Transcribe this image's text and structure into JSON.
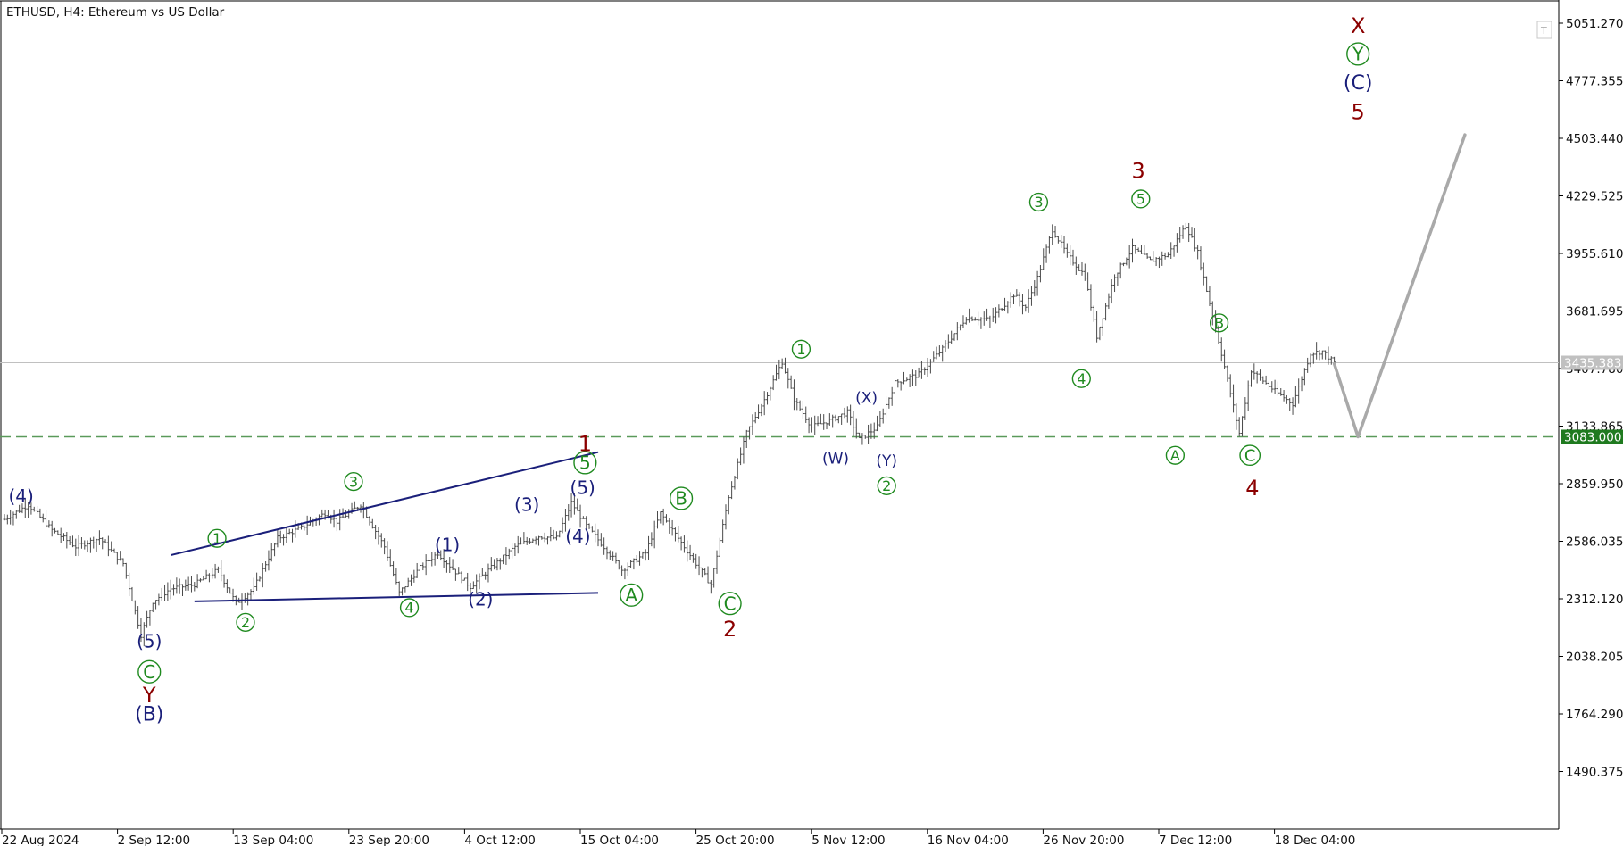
{
  "window": {
    "title": "ETHUSD, H4:  Ethereum vs US Dollar",
    "corner_button": "T"
  },
  "colors": {
    "candle": "#4a4a4a",
    "navy": "#1a1f7a",
    "green": "#1f8a1f",
    "maroon": "#8b0000",
    "forecast": "#a9a9a9",
    "support_line": "#5a9a5a",
    "current_price_line": "#c0c0c0",
    "support_tag": "#1f7a1f",
    "current_tag": "#c0c0c0"
  },
  "chart_data": {
    "type": "candlestick",
    "symbol": "ETHUSD",
    "timeframe": "H4",
    "title": "Ethereum vs US Dollar",
    "y_ticks": [
      "5051.270",
      "4777.355",
      "4503.440",
      "4229.525",
      "3955.610",
      "3681.695",
      "3407.780",
      "3133.865",
      "2859.950",
      "2586.035",
      "2312.120",
      "2038.205",
      "1764.290",
      "1490.375"
    ],
    "x_ticks": [
      "22 Aug 2024",
      "2 Sep 12:00",
      "13 Sep 04:00",
      "23 Sep 20:00",
      "4 Oct 12:00",
      "15 Oct 04:00",
      "25 Oct 20:00",
      "5 Nov 12:00",
      "16 Nov 04:00",
      "26 Nov 20:00",
      "7 Dec 12:00",
      "18 Dec 04:00"
    ],
    "ylim": [
      1250,
      5150
    ],
    "current_price": "3435.383",
    "support_level": "3083.000",
    "price_path": [
      [
        0,
        2690
      ],
      [
        2,
        2760
      ],
      [
        4,
        2640
      ],
      [
        6,
        2560
      ],
      [
        8,
        2600
      ],
      [
        10,
        2480
      ],
      [
        11.4,
        2140
      ],
      [
        12.5,
        2300
      ],
      [
        14,
        2360
      ],
      [
        16,
        2380
      ],
      [
        18,
        2450
      ],
      [
        19.5,
        2290
      ],
      [
        21,
        2360
      ],
      [
        23,
        2600
      ],
      [
        25,
        2650
      ],
      [
        27,
        2720
      ],
      [
        28,
        2680
      ],
      [
        30,
        2760
      ],
      [
        32,
        2560
      ],
      [
        33.3,
        2340
      ],
      [
        35,
        2460
      ],
      [
        36.5,
        2530
      ],
      [
        38,
        2440
      ],
      [
        39.3,
        2370
      ],
      [
        41,
        2460
      ],
      [
        43,
        2560
      ],
      [
        45,
        2610
      ],
      [
        46.5,
        2600
      ],
      [
        47.8,
        2770
      ],
      [
        49,
        2660
      ],
      [
        50.5,
        2560
      ],
      [
        52,
        2450
      ],
      [
        54,
        2530
      ],
      [
        55.3,
        2720
      ],
      [
        56.5,
        2620
      ],
      [
        58,
        2500
      ],
      [
        59.4,
        2380
      ],
      [
        61,
        2800
      ],
      [
        62.5,
        3100
      ],
      [
        64,
        3260
      ],
      [
        65.5,
        3440
      ],
      [
        66.5,
        3260
      ],
      [
        68,
        3130
      ],
      [
        69.5,
        3160
      ],
      [
        71,
        3200
      ],
      [
        72,
        3070
      ],
      [
        73.5,
        3130
      ],
      [
        75,
        3340
      ],
      [
        77,
        3380
      ],
      [
        79,
        3500
      ],
      [
        81,
        3650
      ],
      [
        83,
        3640
      ],
      [
        85,
        3760
      ],
      [
        86,
        3700
      ],
      [
        87,
        3840
      ],
      [
        88.2,
        4070
      ],
      [
        89.5,
        3950
      ],
      [
        91,
        3850
      ],
      [
        92,
        3560
      ],
      [
        93.5,
        3850
      ],
      [
        95,
        3980
      ],
      [
        96.5,
        3920
      ],
      [
        98,
        3950
      ],
      [
        99.4,
        4090
      ],
      [
        100.5,
        3960
      ],
      [
        101.5,
        3720
      ],
      [
        102.5,
        3480
      ],
      [
        104,
        3100
      ],
      [
        105,
        3400
      ],
      [
        107,
        3300
      ],
      [
        108.5,
        3240
      ],
      [
        110,
        3480
      ],
      [
        111,
        3490
      ],
      [
        112,
        3435
      ]
    ],
    "forecast_path": [
      [
        112,
        3430
      ],
      [
        114,
        3083
      ],
      [
        123,
        4520
      ]
    ],
    "trendlines": [
      {
        "from": [
          14,
          2520
        ],
        "to": [
          50,
          3010
        ]
      },
      {
        "from": [
          16,
          2300
        ],
        "to": [
          50,
          2340
        ]
      }
    ],
    "wave_labels": [
      {
        "text": "(4)",
        "x": 1.4,
        "y": 2800,
        "color": "navy",
        "size": 20
      },
      {
        "text": "(5)",
        "x": 12.2,
        "y": 2110,
        "color": "navy",
        "size": 20
      },
      {
        "text": "C",
        "x": 12.2,
        "y": 1965,
        "color": "green",
        "size": 20,
        "circled": true
      },
      {
        "text": "Y",
        "x": 12.2,
        "y": 1855,
        "color": "maroon",
        "size": 24
      },
      {
        "text": "(B)",
        "x": 12.2,
        "y": 1765,
        "color": "navy",
        "size": 22
      },
      {
        "text": "1",
        "x": 17.9,
        "y": 2600,
        "color": "green",
        "size": 16,
        "circled": true
      },
      {
        "text": "2",
        "x": 20.3,
        "y": 2200,
        "color": "green",
        "size": 16,
        "circled": true
      },
      {
        "text": "3",
        "x": 29.4,
        "y": 2870,
        "color": "green",
        "size": 16,
        "circled": true
      },
      {
        "text": "4",
        "x": 34.1,
        "y": 2270,
        "color": "green",
        "size": 16,
        "circled": true
      },
      {
        "text": "(1)",
        "x": 37.3,
        "y": 2570,
        "color": "navy",
        "size": 20
      },
      {
        "text": "(2)",
        "x": 40.1,
        "y": 2310,
        "color": "navy",
        "size": 20
      },
      {
        "text": "(3)",
        "x": 44.0,
        "y": 2760,
        "color": "navy",
        "size": 20
      },
      {
        "text": "(4)",
        "x": 48.3,
        "y": 2610,
        "color": "navy",
        "size": 20
      },
      {
        "text": "(5)",
        "x": 48.7,
        "y": 2840,
        "color": "navy",
        "size": 20
      },
      {
        "text": "5",
        "x": 48.9,
        "y": 2960,
        "color": "green",
        "size": 20,
        "circled": true
      },
      {
        "text": "1",
        "x": 48.9,
        "y": 3050,
        "color": "maroon",
        "size": 24
      },
      {
        "text": "A",
        "x": 52.8,
        "y": 2330,
        "color": "green",
        "size": 20,
        "circled": true
      },
      {
        "text": "B",
        "x": 57.0,
        "y": 2790,
        "color": "green",
        "size": 20,
        "circled": true
      },
      {
        "text": "C",
        "x": 61.1,
        "y": 2290,
        "color": "green",
        "size": 20,
        "circled": true
      },
      {
        "text": "2",
        "x": 61.1,
        "y": 2170,
        "color": "maroon",
        "size": 24
      },
      {
        "text": "1",
        "x": 67.1,
        "y": 3500,
        "color": "green",
        "size": 16,
        "circled": true
      },
      {
        "text": "(W)",
        "x": 70.0,
        "y": 2980,
        "color": "navy",
        "size": 17
      },
      {
        "text": "(X)",
        "x": 72.6,
        "y": 3270,
        "color": "navy",
        "size": 17
      },
      {
        "text": "(Y)",
        "x": 74.3,
        "y": 2970,
        "color": "navy",
        "size": 17
      },
      {
        "text": "2",
        "x": 74.3,
        "y": 2850,
        "color": "green",
        "size": 16,
        "circled": true
      },
      {
        "text": "3",
        "x": 87.1,
        "y": 4200,
        "color": "green",
        "size": 16,
        "circled": true
      },
      {
        "text": "4",
        "x": 90.7,
        "y": 3360,
        "color": "green",
        "size": 16,
        "circled": true
      },
      {
        "text": "3",
        "x": 95.5,
        "y": 4350,
        "color": "maroon",
        "size": 24
      },
      {
        "text": "5",
        "x": 95.7,
        "y": 4215,
        "color": "green",
        "size": 16,
        "circled": true
      },
      {
        "text": "A",
        "x": 98.6,
        "y": 2995,
        "color": "green",
        "size": 16,
        "circled": true
      },
      {
        "text": "B",
        "x": 102.3,
        "y": 3625,
        "color": "green",
        "size": 16,
        "circled": true
      },
      {
        "text": "C",
        "x": 104.9,
        "y": 2995,
        "color": "green",
        "size": 18,
        "circled": true
      },
      {
        "text": "4",
        "x": 105.1,
        "y": 2840,
        "color": "maroon",
        "size": 24
      },
      {
        "text": "X",
        "x": 114.0,
        "y": 5040,
        "color": "maroon",
        "size": 24
      },
      {
        "text": "Y",
        "x": 114.0,
        "y": 4905,
        "color": "green",
        "size": 20,
        "circled": true
      },
      {
        "text": "(C)",
        "x": 114.0,
        "y": 4770,
        "color": "navy",
        "size": 22
      },
      {
        "text": "5",
        "x": 114.0,
        "y": 4630,
        "color": "maroon",
        "size": 24
      }
    ]
  }
}
